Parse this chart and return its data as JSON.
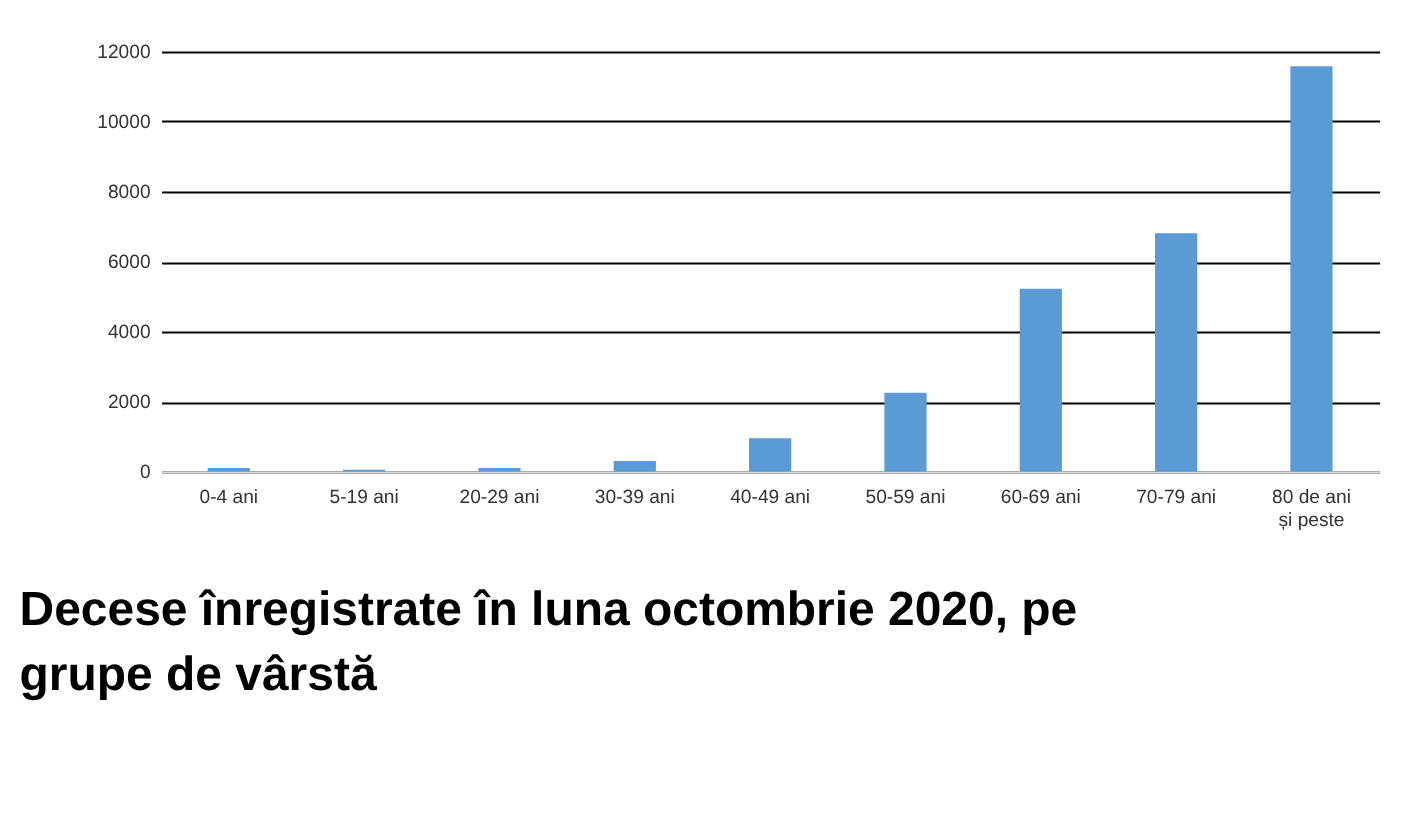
{
  "chart_data": {
    "type": "bar",
    "title": "Decese înregistrate în luna octombrie 2020, pe grupe de vârstă",
    "categories": [
      "0-4 ani",
      "5-19 ani",
      "20-29 ani",
      "30-39 ani",
      "40-49 ani",
      "50-59 ani",
      "60-69 ani",
      "70-79 ani",
      "80 de ani și peste"
    ],
    "values": [
      100,
      50,
      100,
      300,
      950,
      2250,
      5220,
      6810,
      11580
    ],
    "color": "#5b9bd5",
    "ylim": [
      0,
      12000
    ],
    "yticks": [
      0,
      2000,
      4000,
      6000,
      8000,
      10000,
      12000
    ],
    "grid": "y"
  }
}
